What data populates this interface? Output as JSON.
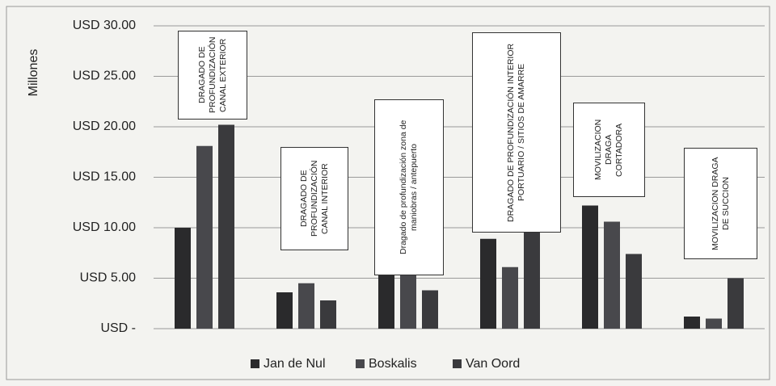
{
  "chart_data": {
    "type": "bar",
    "y_label": "Millones",
    "categories": [
      "DRAGADO DE PROFUNDIZACIÓN CANAL EXTERIOR",
      "DRAGADO DE PROFUNDIZACIÓN CANAL INTERIOR",
      "Dragado de profundización zona de maniobras / antepuerto",
      "DRAGADO DE PROFUNDIZACIÓN INTERIOR PORTUARIO / SITIOS DE AMARRE",
      "MOVILIZACION DRAGA CORTADORA",
      "MOVILIZACION DRAGA DE SUCCION"
    ],
    "series": [
      {
        "name": "Jan de Nul",
        "color": "#2a2a2c",
        "values": [
          10.0,
          3.6,
          6.6,
          8.9,
          12.2,
          1.2
        ]
      },
      {
        "name": "Boskalis",
        "color": "#48484c",
        "values": [
          18.1,
          4.5,
          6.5,
          6.1,
          10.6,
          1.0
        ]
      },
      {
        "name": "Van Oord",
        "color": "#3a3a3d",
        "values": [
          20.2,
          2.8,
          3.8,
          10.7,
          7.4,
          5.0
        ]
      }
    ],
    "ylim": [
      0,
      30
    ],
    "yticks": [
      {
        "value": 0,
        "label": "USD -"
      },
      {
        "value": 5,
        "label": "USD 5.00"
      },
      {
        "value": 10,
        "label": "USD 10.00"
      },
      {
        "value": 15,
        "label": "USD 15.00"
      },
      {
        "value": 20,
        "label": "USD 20.00"
      },
      {
        "value": 25,
        "label": "USD 25.00"
      },
      {
        "value": 30,
        "label": "USD 30.00"
      }
    ],
    "grid": true,
    "legend": "bottom"
  }
}
